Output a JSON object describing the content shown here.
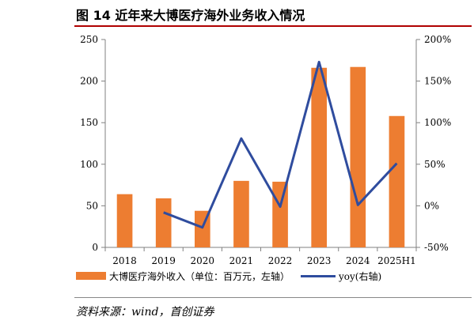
{
  "title": "图 14  近年来大博医疗海外业务收入情况",
  "source": "资料来源：wind，首创证券",
  "colors": {
    "bar": "#ED7D31",
    "line": "#2F4C9E",
    "title_rule": "#B00000"
  },
  "chart_data": {
    "type": "bar",
    "categories": [
      "2018",
      "2019",
      "2020",
      "2021",
      "2022",
      "2023",
      "2024",
      "2025H1"
    ],
    "series": [
      {
        "name": "大博医疗海外收入（单位：百万元，左轴）",
        "type": "bar",
        "axis": "left",
        "values": [
          64,
          59,
          44,
          80,
          79,
          216,
          217,
          158
        ]
      },
      {
        "name": "yoy(右轴)",
        "type": "line",
        "axis": "right",
        "values": [
          null,
          -8,
          -26,
          81,
          -1,
          173,
          1,
          51
        ]
      }
    ],
    "y_left": {
      "min": 0,
      "max": 250,
      "ticks": [
        "0",
        "50",
        "100",
        "150",
        "200",
        "250"
      ]
    },
    "y_right": {
      "min": -50,
      "max": 200,
      "ticks": [
        "-50%",
        "0%",
        "50%",
        "100%",
        "150%",
        "200%"
      ]
    },
    "grid": false,
    "legend_position": "bottom"
  }
}
